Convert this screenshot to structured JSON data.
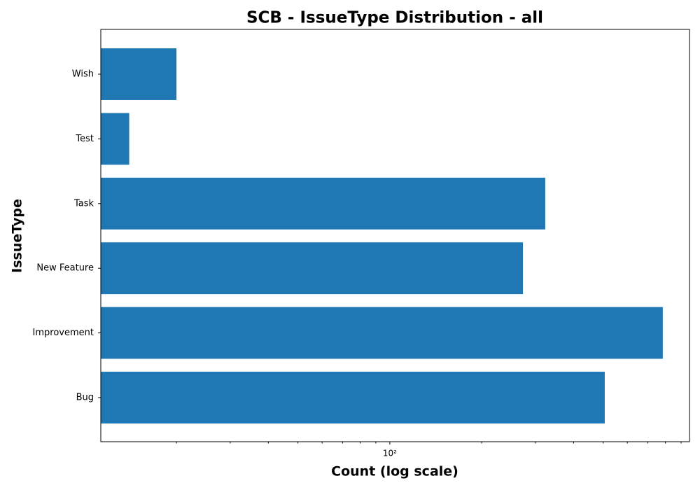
{
  "chart_data": {
    "type": "bar",
    "orientation": "horizontal",
    "title": "SCB - IssueType Distribution - all",
    "xlabel": "Count (log scale)",
    "ylabel": "IssueType",
    "categories": [
      "Bug",
      "Improvement",
      "New Feature",
      "Task",
      "Test",
      "Wish"
    ],
    "values": [
      506,
      784,
      273,
      323,
      14,
      20
    ],
    "color": "#1f77b4",
    "xscale": "log",
    "xlim": [
      11.3,
      959
    ],
    "xticks": [
      {
        "value": 100,
        "label": "10²"
      }
    ],
    "xminorticks": [
      20,
      30,
      40,
      50,
      60,
      70,
      80,
      90,
      200,
      300,
      400,
      500,
      600,
      700,
      800,
      900
    ],
    "grid": false
  }
}
